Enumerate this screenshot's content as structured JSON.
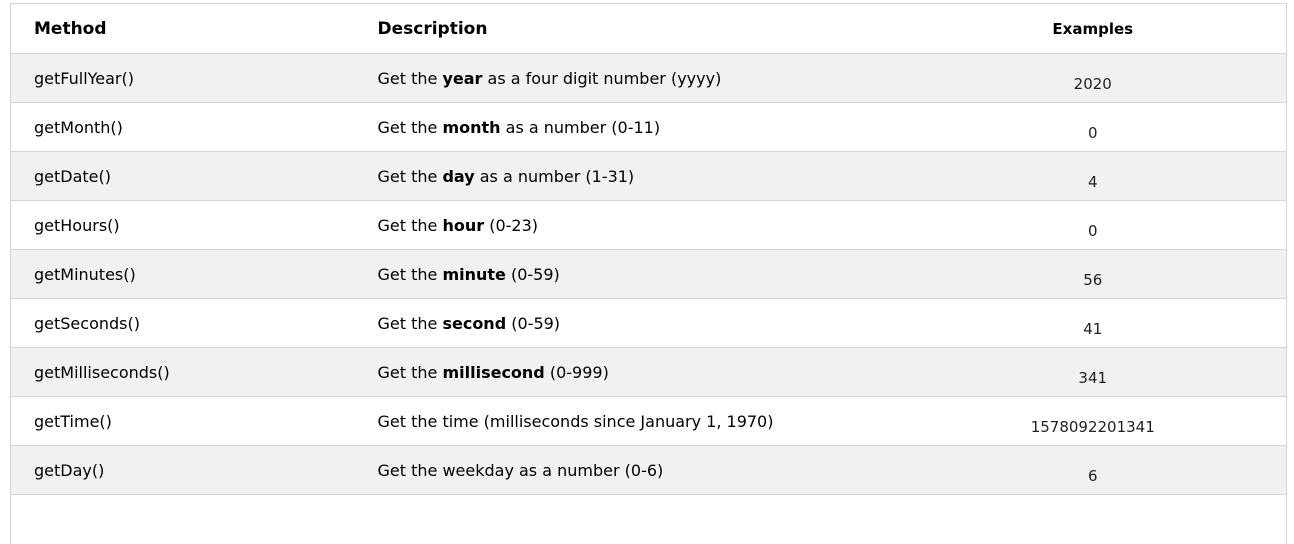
{
  "colors": {
    "row_stripe": "#f1f1f1",
    "border": "#d4d4d4",
    "text": "#000000",
    "example_text": "#222222"
  },
  "table": {
    "headers": [
      "Method",
      "Description",
      "Examples"
    ],
    "rows": [
      {
        "method": "getFullYear()",
        "desc_before": "Get the ",
        "desc_bold": "year",
        "desc_after": " as a four digit number (yyyy)",
        "example": "2020"
      },
      {
        "method": "getMonth()",
        "desc_before": "Get the ",
        "desc_bold": "month",
        "desc_after": " as a number (0-11)",
        "example": "0"
      },
      {
        "method": "getDate()",
        "desc_before": "Get the ",
        "desc_bold": "day",
        "desc_after": " as a number (1-31)",
        "example": "4"
      },
      {
        "method": "getHours()",
        "desc_before": "Get the ",
        "desc_bold": "hour",
        "desc_after": " (0-23)",
        "example": "0"
      },
      {
        "method": "getMinutes()",
        "desc_before": "Get the ",
        "desc_bold": "minute",
        "desc_after": " (0-59)",
        "example": "56"
      },
      {
        "method": "getSeconds()",
        "desc_before": "Get the ",
        "desc_bold": "second",
        "desc_after": " (0-59)",
        "example": "41"
      },
      {
        "method": "getMilliseconds()",
        "desc_before": "Get the ",
        "desc_bold": "millisecond",
        "desc_after": " (0-999)",
        "example": "341"
      },
      {
        "method": "getTime()",
        "desc_before": "Get the time (milliseconds since January 1, 1970)",
        "desc_bold": "",
        "desc_after": "",
        "example": "1578092201341"
      },
      {
        "method": "getDay()",
        "desc_before": "Get the weekday as a number (0-6)",
        "desc_bold": "",
        "desc_after": "",
        "example": "6"
      }
    ]
  }
}
